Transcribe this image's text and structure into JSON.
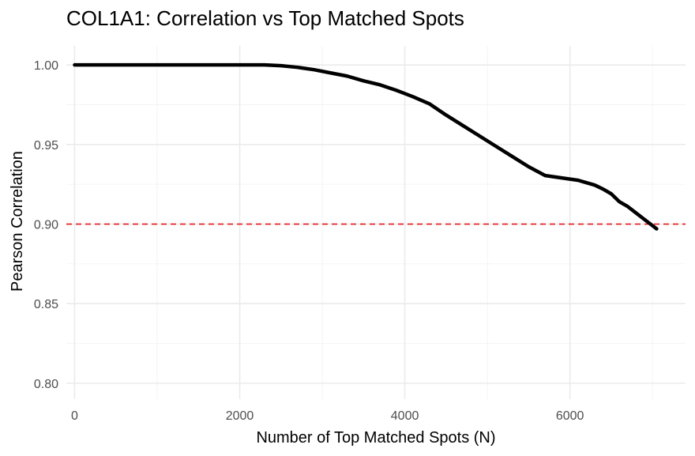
{
  "chart_data": {
    "type": "line",
    "title": "COL1A1: Correlation vs Top Matched Spots",
    "xlabel": "Number of Top Matched Spots (N)",
    "ylabel": "Pearson Correlation",
    "xlim": [
      -100,
      7400
    ],
    "ylim": [
      0.79,
      1.012
    ],
    "x_ticks": [
      0,
      2000,
      4000,
      6000
    ],
    "x_tick_labels": [
      "0",
      "2000",
      "4000",
      "6000"
    ],
    "y_ticks": [
      0.8,
      0.85,
      0.9,
      0.95,
      1.0
    ],
    "y_tick_labels": [
      "0.80",
      "0.85",
      "0.90",
      "0.95",
      "1.00"
    ],
    "grid": true,
    "series": [
      {
        "color": "#000000",
        "x": [
          0,
          500,
          1000,
          1500,
          2000,
          2300,
          2500,
          2700,
          2900,
          3100,
          3300,
          3500,
          3700,
          3900,
          4100,
          4300,
          4500,
          4700,
          4900,
          5100,
          5300,
          5500,
          5700,
          5900,
          6100,
          6200,
          6300,
          6400,
          6500,
          6600,
          6700,
          6800,
          6900,
          7000,
          7050
        ],
        "values": [
          1.0,
          1.0,
          1.0,
          1.0,
          1.0,
          1.0,
          0.9995,
          0.9985,
          0.997,
          0.995,
          0.993,
          0.99,
          0.9875,
          0.984,
          0.98,
          0.9755,
          0.9685,
          0.962,
          0.9555,
          0.949,
          0.9425,
          0.936,
          0.9305,
          0.929,
          0.9275,
          0.926,
          0.9245,
          0.922,
          0.919,
          0.914,
          0.911,
          0.907,
          0.903,
          0.899,
          0.897
        ]
      }
    ],
    "reference_line": {
      "y": 0.9,
      "color": "#e41a1c",
      "style": "dashed"
    }
  }
}
